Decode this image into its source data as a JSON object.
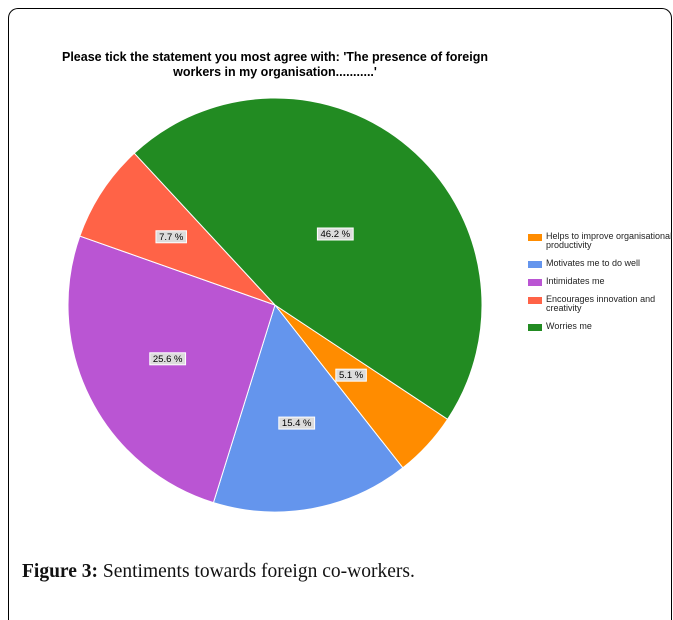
{
  "chart_data": {
    "type": "pie",
    "title": "Please tick the statement you most agree with: 'The presence of foreign workers in my organisation...........'",
    "slices": [
      {
        "label": "Helps to improve organisational productivity",
        "value": 5.1,
        "display": "5.1 %",
        "color": "#ff8c00"
      },
      {
        "label": "Motivates me to do well",
        "value": 15.4,
        "display": "15.4 %",
        "color": "#6495ed"
      },
      {
        "label": "Intimidates me",
        "value": 25.6,
        "display": "25.6 %",
        "color": "#ba55d3"
      },
      {
        "label": "Encourages innovation and creativity",
        "value": 7.7,
        "display": "7.7 %",
        "color": "#ff6347"
      },
      {
        "label": "Worries me",
        "value": 46.2,
        "display": "46.2 %",
        "color": "#228b22"
      }
    ],
    "legend_position": "right"
  },
  "caption": {
    "prefix": "Figure 3:",
    "text": " Sentiments towards foreign co-workers."
  }
}
